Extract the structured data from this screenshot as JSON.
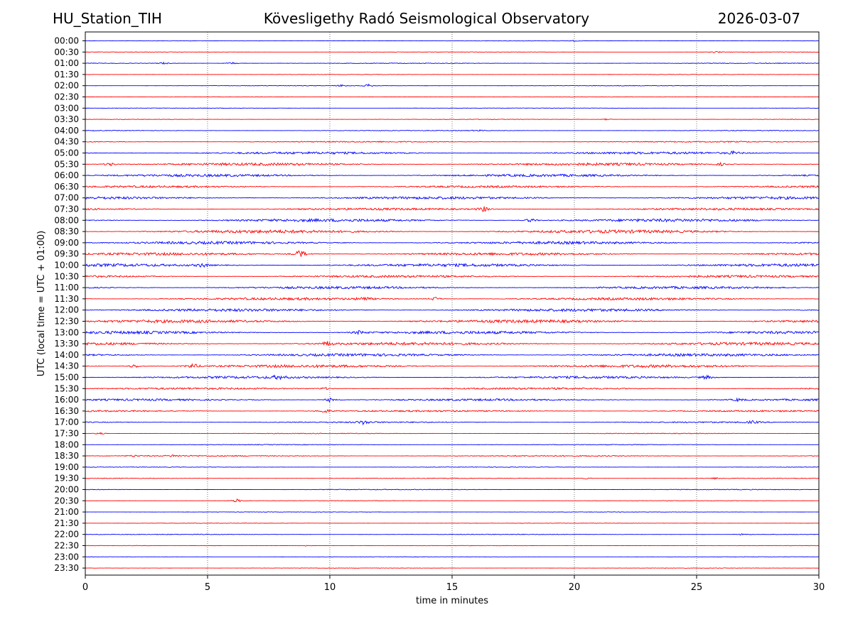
{
  "header": {
    "station": "HU_Station_TIH",
    "observatory": "Kövesligethy Radó Seismological Observatory",
    "date": "2026-03-07"
  },
  "chart_data": {
    "type": "line",
    "title": "Kövesligethy Radó Seismological Observatory",
    "xlabel": "time in minutes",
    "ylabel": "UTC (local time = UTC + 01:00)",
    "xlim": [
      0,
      30
    ],
    "xticks": [
      0,
      5,
      10,
      15,
      20,
      25,
      30
    ],
    "vertical_gridlines": [
      5,
      10,
      15,
      20,
      25
    ],
    "colors": {
      "even_rows": "#0000ff",
      "odd_rows": "#ff0000",
      "grid": "#555555"
    },
    "rows": [
      {
        "label": "00:00",
        "noise": 0.3,
        "events": [
          {
            "t": 20.0,
            "amp": 0.8
          }
        ]
      },
      {
        "label": "00:30",
        "noise": 0.3,
        "events": [
          {
            "t": 25.8,
            "amp": 1.5
          }
        ]
      },
      {
        "label": "01:00",
        "noise": 0.5,
        "events": [
          {
            "t": 3.2,
            "amp": 1.5
          },
          {
            "t": 6.0,
            "amp": 1.5
          }
        ]
      },
      {
        "label": "01:30",
        "noise": 0.3,
        "events": []
      },
      {
        "label": "02:00",
        "noise": 0.4,
        "events": [
          {
            "t": 10.5,
            "amp": 1.5
          },
          {
            "t": 11.6,
            "amp": 2
          }
        ]
      },
      {
        "label": "02:30",
        "noise": 0.3,
        "events": []
      },
      {
        "label": "03:00",
        "noise": 0.3,
        "events": []
      },
      {
        "label": "03:30",
        "noise": 0.4,
        "events": [
          {
            "t": 21.3,
            "amp": 1
          }
        ]
      },
      {
        "label": "04:00",
        "noise": 0.5,
        "events": [
          {
            "t": 16.1,
            "amp": 1
          }
        ]
      },
      {
        "label": "04:30",
        "noise": 0.8,
        "events": []
      },
      {
        "label": "05:00",
        "noise": 1.6,
        "events": [
          {
            "t": 26.5,
            "amp": 2
          }
        ]
      },
      {
        "label": "05:30",
        "noise": 1.8,
        "events": [
          {
            "t": 1.0,
            "amp": 3
          },
          {
            "t": 26.0,
            "amp": 2
          }
        ]
      },
      {
        "label": "06:00",
        "noise": 1.7,
        "events": []
      },
      {
        "label": "06:30",
        "noise": 1.4,
        "events": []
      },
      {
        "label": "07:00",
        "noise": 1.8,
        "events": []
      },
      {
        "label": "07:30",
        "noise": 1.5,
        "events": [
          {
            "t": 16.3,
            "amp": 4
          }
        ]
      },
      {
        "label": "08:00",
        "noise": 2.0,
        "events": [
          {
            "t": 18.2,
            "amp": 3
          }
        ]
      },
      {
        "label": "08:30",
        "noise": 2.2,
        "events": []
      },
      {
        "label": "09:00",
        "noise": 1.9,
        "events": []
      },
      {
        "label": "09:30",
        "noise": 1.8,
        "events": [
          {
            "t": 8.8,
            "amp": 7
          }
        ]
      },
      {
        "label": "10:00",
        "noise": 2.0,
        "events": [
          {
            "t": 4.8,
            "amp": 3
          }
        ]
      },
      {
        "label": "10:30",
        "noise": 1.6,
        "events": []
      },
      {
        "label": "11:00",
        "noise": 1.7,
        "events": []
      },
      {
        "label": "11:30",
        "noise": 1.7,
        "events": [
          {
            "t": 11.4,
            "amp": 3
          },
          {
            "t": 14.3,
            "amp": 3
          }
        ]
      },
      {
        "label": "12:00",
        "noise": 1.9,
        "events": []
      },
      {
        "label": "12:30",
        "noise": 2.1,
        "events": []
      },
      {
        "label": "13:00",
        "noise": 2.0,
        "events": [
          {
            "t": 11.2,
            "amp": 3
          }
        ]
      },
      {
        "label": "13:30",
        "noise": 2.0,
        "events": [
          {
            "t": 9.9,
            "amp": 3
          }
        ]
      },
      {
        "label": "14:00",
        "noise": 1.8,
        "events": []
      },
      {
        "label": "14:30",
        "noise": 1.9,
        "events": [
          {
            "t": 2.0,
            "amp": 3
          },
          {
            "t": 4.4,
            "amp": 4
          }
        ]
      },
      {
        "label": "15:00",
        "noise": 1.6,
        "events": [
          {
            "t": 7.9,
            "amp": 3
          },
          {
            "t": 25.4,
            "amp": 3
          }
        ]
      },
      {
        "label": "15:30",
        "noise": 1.3,
        "events": [
          {
            "t": 9.8,
            "amp": 2
          }
        ]
      },
      {
        "label": "16:00",
        "noise": 1.4,
        "events": [
          {
            "t": 10.0,
            "amp": 3
          },
          {
            "t": 26.7,
            "amp": 2
          }
        ]
      },
      {
        "label": "16:30",
        "noise": 1.1,
        "events": [
          {
            "t": 9.8,
            "amp": 3
          }
        ]
      },
      {
        "label": "17:00",
        "noise": 0.9,
        "events": [
          {
            "t": 11.4,
            "amp": 3
          },
          {
            "t": 27.3,
            "amp": 2
          }
        ]
      },
      {
        "label": "17:30",
        "noise": 0.5,
        "events": [
          {
            "t": 0.6,
            "amp": 1.5
          }
        ]
      },
      {
        "label": "18:00",
        "noise": 0.5,
        "events": []
      },
      {
        "label": "18:30",
        "noise": 0.8,
        "events": [
          {
            "t": 2.0,
            "amp": 1.5
          },
          {
            "t": 3.6,
            "amp": 1.5
          }
        ]
      },
      {
        "label": "19:00",
        "noise": 0.4,
        "events": []
      },
      {
        "label": "19:30",
        "noise": 0.5,
        "events": [
          {
            "t": 20.5,
            "amp": 1.2
          },
          {
            "t": 25.8,
            "amp": 1.2
          }
        ]
      },
      {
        "label": "20:00",
        "noise": 0.5,
        "events": []
      },
      {
        "label": "20:30",
        "noise": 0.4,
        "events": [
          {
            "t": 6.2,
            "amp": 2.5
          }
        ]
      },
      {
        "label": "21:00",
        "noise": 0.3,
        "events": []
      },
      {
        "label": "21:30",
        "noise": 0.3,
        "events": []
      },
      {
        "label": "22:00",
        "noise": 0.5,
        "events": [
          {
            "t": 26.9,
            "amp": 1.5
          }
        ]
      },
      {
        "label": "22:30",
        "noise": 0.3,
        "events": [
          {
            "t": 9.0,
            "amp": 1
          }
        ]
      },
      {
        "label": "23:00",
        "noise": 0.3,
        "events": []
      },
      {
        "label": "23:30",
        "noise": 0.3,
        "events": []
      }
    ]
  }
}
